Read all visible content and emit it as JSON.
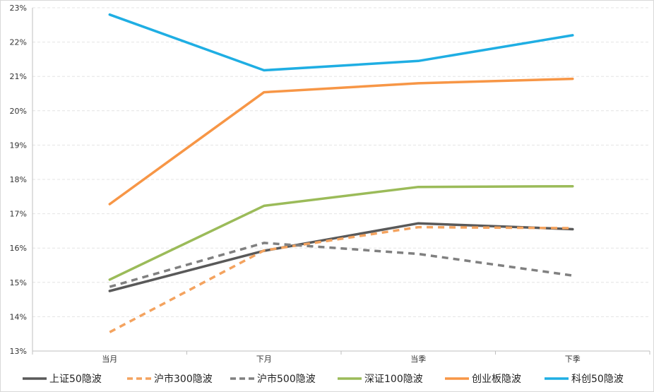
{
  "chart_data": {
    "type": "line",
    "categories": [
      "当月",
      "下月",
      "当季",
      "下季"
    ],
    "ylim": [
      0.13,
      0.23
    ],
    "yticks": [
      "13%",
      "14%",
      "15%",
      "16%",
      "17%",
      "18%",
      "19%",
      "20%",
      "21%",
      "22%",
      "23%"
    ],
    "grid": "horizontal dashed",
    "legend_position": "bottom",
    "series": [
      {
        "name": "上证50隐波",
        "values": [
          0.1475,
          0.1592,
          0.1672,
          0.1655
        ],
        "color": "#595959",
        "dash": "solid"
      },
      {
        "name": "沪市300隐波",
        "values": [
          0.1355,
          0.1593,
          0.1661,
          0.1658
        ],
        "color": "#F4A35F",
        "dash": "dashed"
      },
      {
        "name": "沪市500隐波",
        "values": [
          0.1487,
          0.1615,
          0.1583,
          0.152
        ],
        "color": "#808080",
        "dash": "dashed"
      },
      {
        "name": "深证100隐波",
        "values": [
          0.1508,
          0.1723,
          0.1778,
          0.178
        ],
        "color": "#9BBB59",
        "dash": "solid"
      },
      {
        "name": "创业板隐波",
        "values": [
          0.1728,
          0.2054,
          0.208,
          0.2093
        ],
        "color": "#F79646",
        "dash": "solid"
      },
      {
        "name": "科创50隐波",
        "values": [
          0.228,
          0.2118,
          0.2145,
          0.222
        ],
        "color": "#1FAEE3",
        "dash": "solid"
      }
    ]
  }
}
